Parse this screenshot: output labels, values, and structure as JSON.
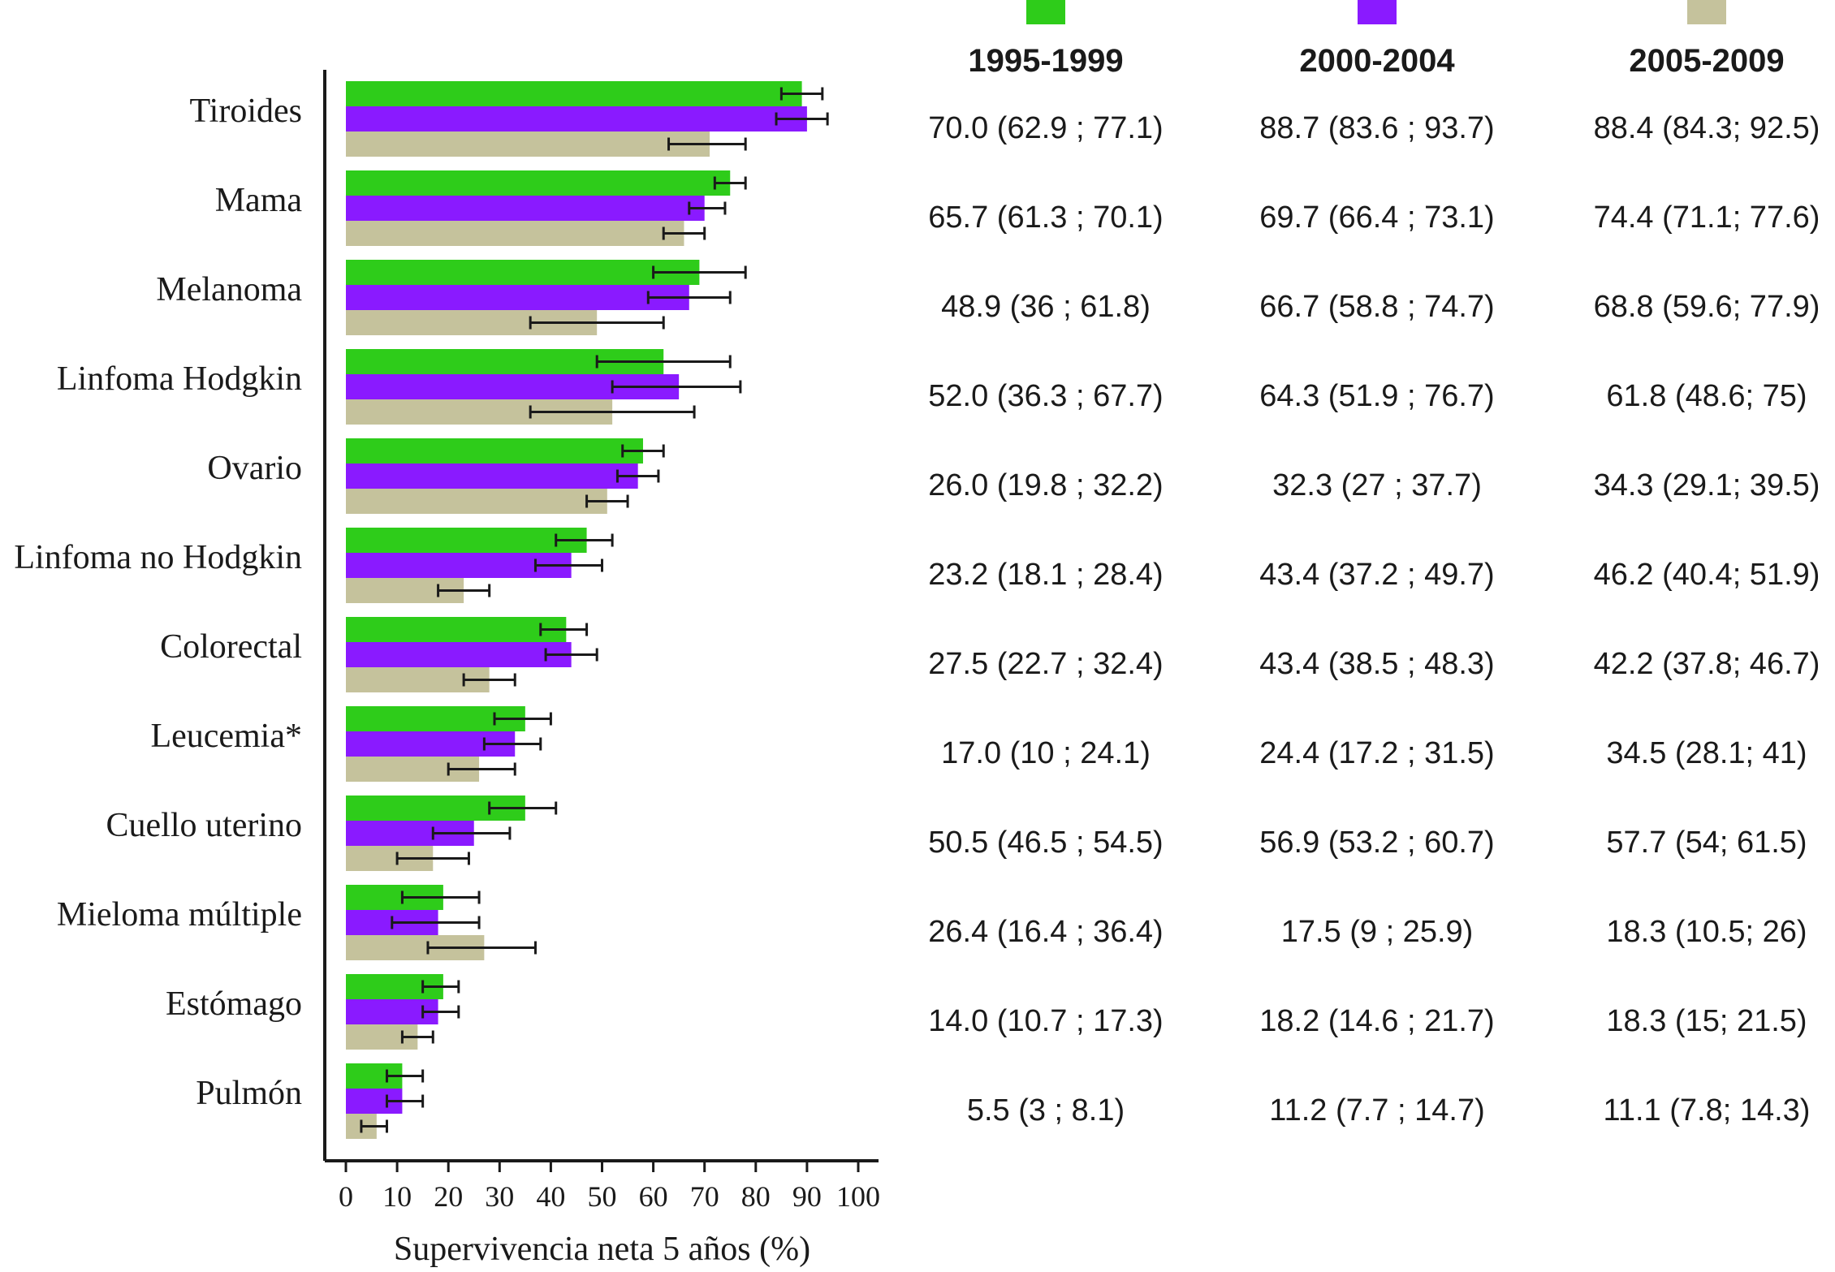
{
  "chart_data": {
    "type": "bar",
    "orientation": "horizontal",
    "xlabel": "Supervivencia neta 5 años (%)",
    "xlim": [
      0,
      100
    ],
    "xticks": [
      0,
      10,
      20,
      30,
      40,
      50,
      60,
      70,
      80,
      90,
      100
    ],
    "grid": false,
    "legend_position": "top",
    "categories": [
      "Tiroides",
      "Mama",
      "Melanoma",
      "Linfoma Hodgkin",
      "Ovario",
      "Linfoma no Hodgkin",
      "Colorectal",
      "Leucemia*",
      "Cuello uterino",
      "Mieloma múltiple",
      "Estómago",
      "Pulmón"
    ],
    "series": [
      {
        "name": "1995-1999",
        "color": "#2ecc1a",
        "values": [
          89,
          75,
          69,
          62,
          58,
          47,
          43,
          35,
          35,
          19,
          19,
          11
        ],
        "error_low": [
          85,
          72,
          60,
          49,
          54,
          41,
          38,
          29,
          28,
          11,
          15,
          8
        ],
        "error_high": [
          93,
          78,
          78,
          75,
          62,
          52,
          47,
          40,
          41,
          26,
          22,
          15
        ],
        "table_values": [
          "70.0  (62.9 ; 77.1)",
          "65.7  (61.3 ; 70.1)",
          "48.9  (36 ; 61.8)",
          "52.0  (36.3 ; 67.7)",
          "26.0  (19.8 ; 32.2)",
          "23.2  (18.1 ; 28.4)",
          "27.5  (22.7 ; 32.4)",
          "17.0  (10 ; 24.1)",
          "50.5  (46.5 ; 54.5)",
          "26.4   (16.4 ; 36.4)",
          "14.0  (10.7 ; 17.3)",
          "5.5  (3 ; 8.1)"
        ]
      },
      {
        "name": "2000-2004",
        "color": "#8a1aff",
        "values": [
          90,
          70,
          67,
          65,
          57,
          44,
          44,
          33,
          25,
          18,
          18,
          11
        ],
        "error_low": [
          84,
          67,
          59,
          52,
          53,
          37,
          39,
          27,
          17,
          9,
          15,
          8
        ],
        "error_high": [
          94,
          74,
          75,
          77,
          61,
          50,
          49,
          38,
          32,
          26,
          22,
          15
        ],
        "table_values": [
          "88.7  (83.6 ; 93.7)",
          "69.7  (66.4 ; 73.1)",
          "66.7  (58.8 ; 74.7)",
          "64.3  (51.9 ; 76.7)",
          "32.3  (27 ; 37.7)",
          "43.4  (37.2 ; 49.7)",
          "43.4  (38.5 ; 48.3)",
          "24.4  (17.2 ; 31.5)",
          "56.9  (53.2 ; 60.7)",
          "17.5  (9 ; 25.9)",
          "18.2  (14.6 ; 21.7)",
          "11.2  (7.7 ; 14.7)"
        ]
      },
      {
        "name": "2005-2009",
        "color": "#c5c29c",
        "values": [
          71,
          66,
          49,
          52,
          51,
          23,
          28,
          26,
          17,
          27,
          14,
          6
        ],
        "error_low": [
          63,
          62,
          36,
          36,
          47,
          18,
          23,
          20,
          10,
          16,
          11,
          3
        ],
        "error_high": [
          78,
          70,
          62,
          68,
          55,
          28,
          33,
          33,
          24,
          37,
          17,
          8
        ],
        "table_values": [
          "88.4  (84.3; 92.5)",
          "74.4  (71.1; 77.6)",
          "68.8  (59.6; 77.9)",
          "61.8  (48.6; 75)",
          "34.3  (29.1; 39.5)",
          "46.2  (40.4; 51.9)",
          "42.2  (37.8; 46.7)",
          "34.5  (28.1; 41)",
          "57.7  (54; 61.5)",
          "18.3  (10.5; 26)",
          "18.3  (15; 21.5)",
          "11.1  (7.8; 14.3)"
        ]
      }
    ]
  }
}
